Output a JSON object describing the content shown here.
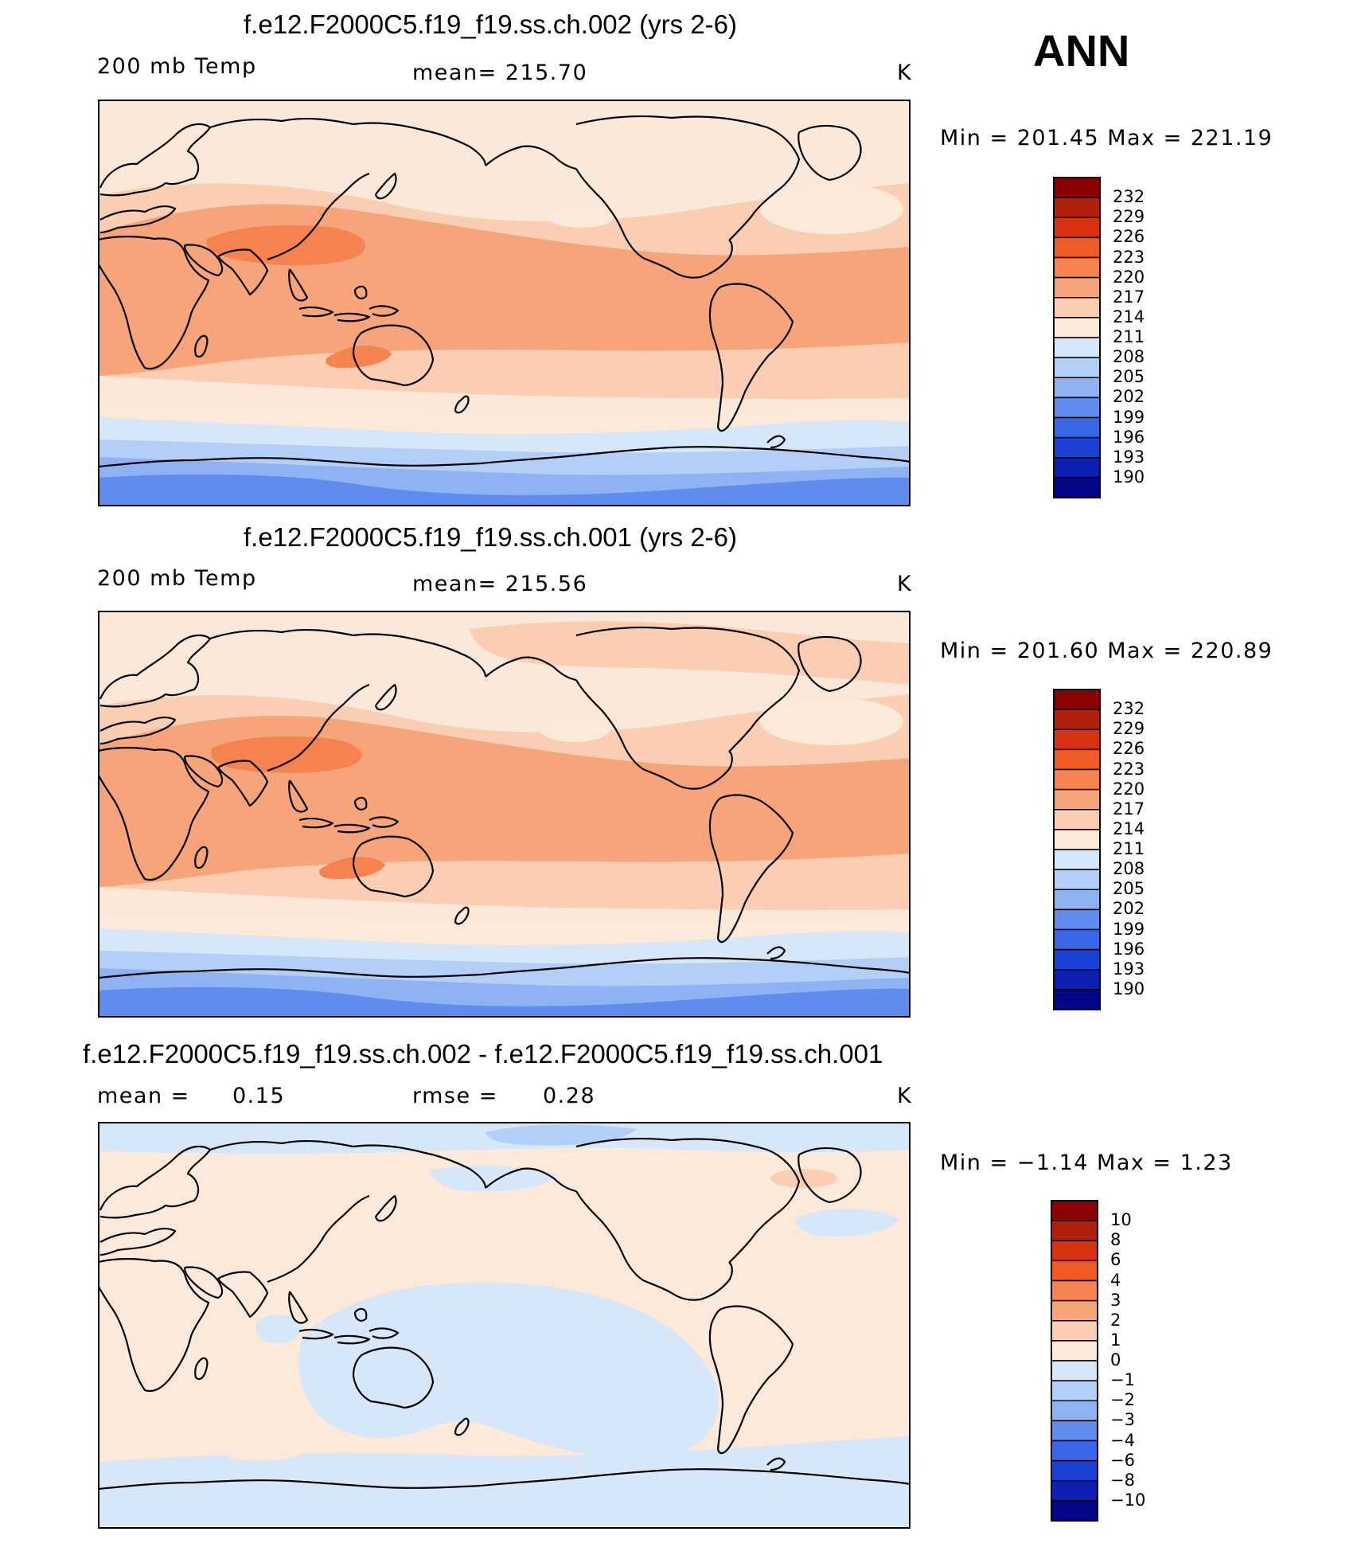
{
  "season": "ANN",
  "colors": {
    "coast": "#000000",
    "frame": "#000000"
  },
  "panels": [
    {
      "title": "f.e12.F2000C5.f19_f19.ss.ch.002 (yrs 2-6)",
      "variable": "200 mb Temp",
      "stat": "mean=  215.70",
      "units": "K",
      "minmax": "Min  =  201.45  Max  =  221.19",
      "colorbar": {
        "labels": [
          "232",
          "229",
          "226",
          "223",
          "220",
          "217",
          "214",
          "211",
          "208",
          "205",
          "202",
          "199",
          "196",
          "193",
          "190"
        ],
        "colors": [
          "#8b0000",
          "#b0200a",
          "#d83210",
          "#f05a25",
          "#f68250",
          "#f8a47a",
          "#fbcdb2",
          "#fde9da",
          "#d6e7fa",
          "#b3cff8",
          "#8eb2f3",
          "#5f8cee",
          "#3a66e8",
          "#1a40d6",
          "#0b20b0",
          "#06068a"
        ]
      }
    },
    {
      "title": "f.e12.F2000C5.f19_f19.ss.ch.001 (yrs 2-6)",
      "variable": "200 mb Temp",
      "stat": "mean=  215.56",
      "units": "K",
      "minmax": "Min  =  201.60  Max  =  220.89",
      "colorbar": {
        "labels": [
          "232",
          "229",
          "226",
          "223",
          "220",
          "217",
          "214",
          "211",
          "208",
          "205",
          "202",
          "199",
          "196",
          "193",
          "190"
        ],
        "colors": [
          "#8b0000",
          "#b0200a",
          "#d83210",
          "#f05a25",
          "#f68250",
          "#f8a47a",
          "#fbcdb2",
          "#fde9da",
          "#d6e7fa",
          "#b3cff8",
          "#8eb2f3",
          "#5f8cee",
          "#3a66e8",
          "#1a40d6",
          "#0b20b0",
          "#06068a"
        ]
      }
    },
    {
      "title": "f.e12.F2000C5.f19_f19.ss.ch.002 - f.e12.F2000C5.f19_f19.ss.ch.001",
      "stat_mean_label": "mean  =",
      "stat_mean_value": "0.15",
      "stat_rmse_label": "rmse  =",
      "stat_rmse_value": "0.28",
      "units": "K",
      "minmax": "Min  =    −1.14  Max  =     1.23",
      "colorbar": {
        "labels": [
          "10",
          "8",
          "6",
          "4",
          "3",
          "2",
          "1",
          "0",
          "−1",
          "−2",
          "−3",
          "−4",
          "−6",
          "−8",
          "−10"
        ],
        "colors": [
          "#8b0000",
          "#b0200a",
          "#d83210",
          "#f05a25",
          "#f68250",
          "#f8a47a",
          "#fbcdb2",
          "#fde9da",
          "#d6e7fa",
          "#b3cff8",
          "#8eb2f3",
          "#5f8cee",
          "#3a66e8",
          "#1a40d6",
          "#0b20b0",
          "#06068a"
        ]
      }
    }
  ]
}
